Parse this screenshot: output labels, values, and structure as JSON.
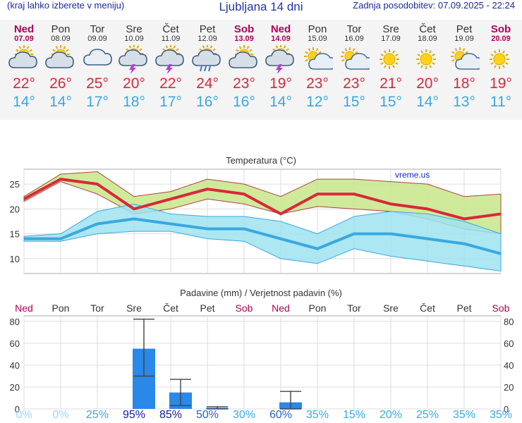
{
  "header": {
    "menu_hint": "(kraj lahko izberete v meniju)",
    "title": "Ljubljana 14 dni",
    "updated": "Zadnja posodobitev: 07.09.2025 - 22:24"
  },
  "days": [
    {
      "name": "Ned",
      "date": "07.09",
      "weekend": true,
      "icon": "cloudy-sun-icon",
      "tmax": "22°",
      "tmin": "14°"
    },
    {
      "name": "Pon",
      "date": "08.09",
      "weekend": false,
      "icon": "cloudy-sun-icon",
      "tmax": "26°",
      "tmin": "14°"
    },
    {
      "name": "Tor",
      "date": "09.09",
      "weekend": false,
      "icon": "cloud-icon",
      "tmax": "25°",
      "tmin": "17°"
    },
    {
      "name": "Sre",
      "date": "10.09",
      "weekend": false,
      "icon": "thunderstorm-sun-icon",
      "tmax": "20°",
      "tmin": "18°"
    },
    {
      "name": "Čet",
      "date": "11.09",
      "weekend": false,
      "icon": "thunderstorm-sun-icon",
      "tmax": "22°",
      "tmin": "17°"
    },
    {
      "name": "Pet",
      "date": "12.09",
      "weekend": false,
      "icon": "rain-sun-icon",
      "tmax": "24°",
      "tmin": "16°"
    },
    {
      "name": "Sob",
      "date": "13.09",
      "weekend": true,
      "icon": "cloudy-sun-icon",
      "tmax": "23°",
      "tmin": "16°"
    },
    {
      "name": "Ned",
      "date": "14.09",
      "weekend": true,
      "icon": "thunderstorm-sun-icon",
      "tmax": "19°",
      "tmin": "14°"
    },
    {
      "name": "Pon",
      "date": "15.09",
      "weekend": false,
      "icon": "partly-cloudy-icon",
      "tmax": "23°",
      "tmin": "12°"
    },
    {
      "name": "Tor",
      "date": "16.09",
      "weekend": false,
      "icon": "partly-cloudy-icon",
      "tmax": "23°",
      "tmin": "15°"
    },
    {
      "name": "Sre",
      "date": "17.09",
      "weekend": false,
      "icon": "sun-icon",
      "tmax": "21°",
      "tmin": "15°"
    },
    {
      "name": "Čet",
      "date": "18.09",
      "weekend": false,
      "icon": "sun-icon",
      "tmax": "20°",
      "tmin": "14°"
    },
    {
      "name": "Pet",
      "date": "19.09",
      "weekend": false,
      "icon": "partly-cloudy-icon",
      "tmax": "18°",
      "tmin": "13°"
    },
    {
      "name": "Sob",
      "date": "20.09",
      "weekend": true,
      "icon": "sun-icon",
      "tmax": "19°",
      "tmin": "11°"
    }
  ],
  "chart_data": [
    {
      "type": "line",
      "title": "Temperatura (°C)",
      "watermark": "vreme.us",
      "x": [
        "Ned",
        "Pon",
        "Tor",
        "Sre",
        "Čet",
        "Pet",
        "Sob",
        "Ned",
        "Pon",
        "Tor",
        "Sre",
        "Čet",
        "Pet",
        "Sob"
      ],
      "ylim": [
        7,
        28
      ],
      "yticks": [
        10,
        15,
        20,
        25
      ],
      "grid": true,
      "series": [
        {
          "values": [
            22,
            26,
            25,
            20,
            22,
            24,
            23,
            19,
            23,
            23,
            21,
            20,
            18,
            19
          ],
          "color": "#d8283a"
        },
        {
          "values": [
            14,
            14,
            17,
            18,
            17,
            16,
            16,
            14,
            12,
            15,
            15,
            14,
            13,
            11
          ],
          "color": "#3aa8e0"
        }
      ],
      "bands": [
        {
          "lower": [
            21.5,
            25.5,
            23,
            19,
            20,
            22,
            21,
            19,
            20.5,
            20,
            19.5,
            18,
            16,
            15
          ],
          "upper": [
            22.5,
            27,
            27.5,
            22.5,
            23.5,
            26,
            25,
            22.5,
            26,
            26,
            25.5,
            25,
            22.5,
            23
          ],
          "fill": "#c8e68a",
          "stroke": "#b04040"
        },
        {
          "lower": [
            13.5,
            13.5,
            15,
            15.5,
            15.5,
            14,
            13.5,
            10,
            9,
            12,
            10.5,
            9.5,
            8.5,
            7.5
          ],
          "upper": [
            14.5,
            15,
            19.5,
            21,
            19,
            18.5,
            18.5,
            17.5,
            15,
            18.5,
            19.5,
            19,
            17.5,
            15
          ],
          "fill": "#9ee3f0",
          "stroke": "#3aa8e0"
        }
      ]
    },
    {
      "type": "bar",
      "title": "Padavine (mm) / Verjetnost padavin (%)",
      "categories": [
        "Ned",
        "Pon",
        "Tor",
        "Sre",
        "Čet",
        "Pet",
        "Sob",
        "Ned",
        "Pon",
        "Tor",
        "Sre",
        "Čet",
        "Pet",
        "Sob"
      ],
      "values": [
        0,
        0,
        0,
        55,
        15,
        1,
        0,
        6,
        0,
        0,
        0,
        0,
        0,
        0
      ],
      "error_high": [
        0,
        0,
        0,
        82,
        27,
        2,
        0,
        16,
        0,
        0,
        0,
        0,
        0,
        0
      ],
      "error_low": [
        0,
        0,
        0,
        30,
        3,
        0,
        0,
        0,
        0,
        0,
        0,
        0,
        0,
        0
      ],
      "ylim": [
        0,
        85
      ],
      "yticks": [
        0,
        20,
        40,
        60,
        80
      ],
      "bar_color": "#2a88e8",
      "probability": [
        "0%",
        "0%",
        "25%",
        "95%",
        "85%",
        "50%",
        "30%",
        "60%",
        "35%",
        "15%",
        "20%",
        "25%",
        "35%",
        "35%"
      ]
    }
  ]
}
